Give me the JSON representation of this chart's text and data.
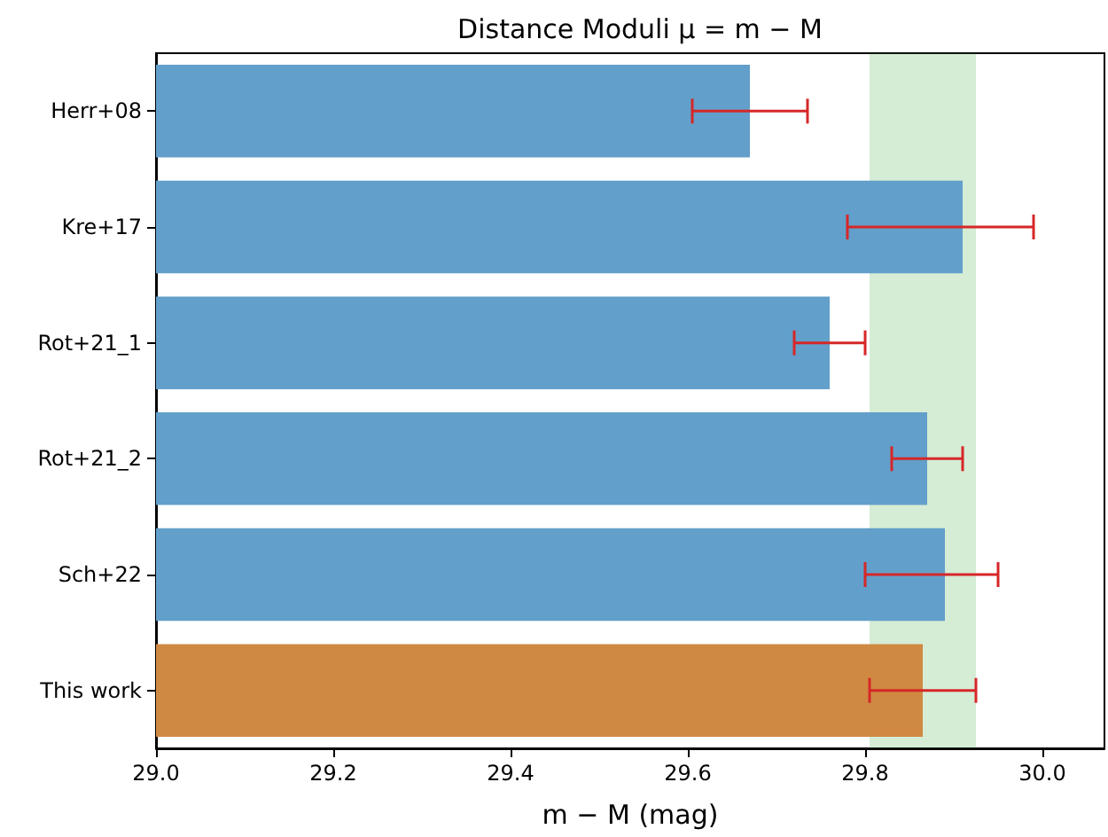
{
  "chart_data": {
    "type": "bar",
    "orientation": "horizontal",
    "title": "Distance Moduli μ = m − M",
    "xlabel": "m − M (mag)",
    "categories": [
      "Herr+08",
      "Kre+17",
      "Rot+21_1",
      "Rot+21_2",
      "Sch+22",
      "This work"
    ],
    "values": [
      29.67,
      29.91,
      29.76,
      29.87,
      29.89,
      29.865
    ],
    "colors": [
      "#629fca",
      "#629fca",
      "#629fca",
      "#629fca",
      "#629fca",
      "#cf8942"
    ],
    "errors": [
      0.065,
      [
        29.78,
        29.99
      ],
      0.04,
      0.04,
      [
        29.8,
        29.95
      ],
      0.06
    ],
    "xlim": [
      29.0,
      30.07
    ],
    "xticks": [
      {
        "value": 29,
        "label": "29.0"
      },
      29.2,
      29.4,
      29.6,
      29.8,
      {
        "value": 30,
        "label": "30.0"
      }
    ],
    "bands": [
      {
        "axis": "x",
        "from": 29.805,
        "to": 29.925,
        "color": "#2ca02c"
      }
    ],
    "grid": false
  }
}
